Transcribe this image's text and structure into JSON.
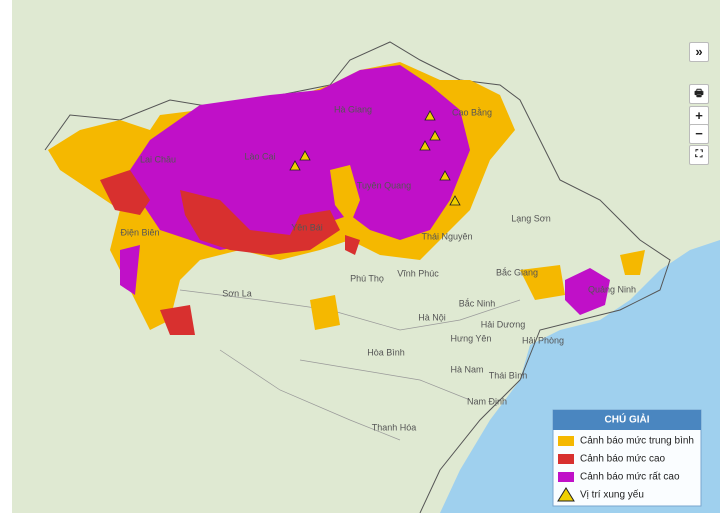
{
  "controls": {
    "expand": "»",
    "zoom_in": "+",
    "zoom_out": "−"
  },
  "provinces": [
    "Lai Châu",
    "Lào Cai",
    "Hà Giang",
    "Cao Bằng",
    "Tuyên Quang",
    "Điện Biên",
    "Yên Bái",
    "Thái Nguyên",
    "Lạng Sơn",
    "Phú Thọ",
    "Vĩnh Phúc",
    "Bắc Giang",
    "Quảng Ninh",
    "Sơn La",
    "Bắc Ninh",
    "Hà Nội",
    "Hải Dương",
    "Hưng Yên",
    "Hải Phòng",
    "Hòa Bình",
    "Hà Nam",
    "Thái Bình",
    "Nam Định",
    "Thanh Hóa"
  ],
  "legend": {
    "title": "CHÚ GIẢI",
    "items": [
      {
        "label": "Cảnh báo mức trung bình",
        "color": "#f5b800"
      },
      {
        "label": "Cảnh báo mức cao",
        "color": "#d8302f"
      },
      {
        "label": "Cảnh báo mức rất cao",
        "color": "#c010c8"
      },
      {
        "label": "Vị trí xung yếu",
        "color": "#f0d000"
      }
    ]
  }
}
